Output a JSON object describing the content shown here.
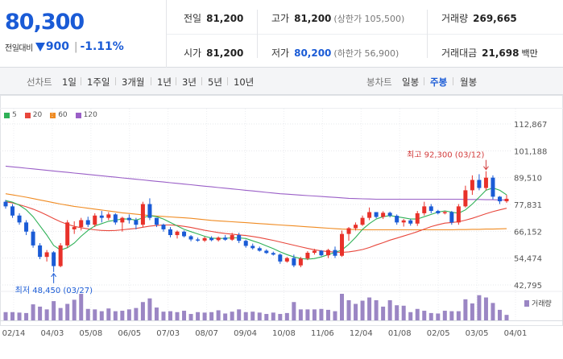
{
  "quote": {
    "price": "80,300",
    "change_label": "전일대비",
    "change_abs": "900",
    "change_pct": "-1.11%",
    "direction": "down",
    "prev_close_label": "전일",
    "prev_close": "81,200",
    "high_label": "고가",
    "high": "81,200",
    "upper_limit": "(상한가 105,500)",
    "volume_label": "거래량",
    "volume": "269,665",
    "open_label": "시가",
    "open": "81,200",
    "low_label": "저가",
    "low": "80,200",
    "lower_limit": "(하한가 56,900)",
    "amount_label": "거래대금",
    "amount": "21,698",
    "amount_unit": "백만"
  },
  "toolbar": {
    "line_chart_label": "선차트",
    "line_periods": [
      "1일",
      "1주일",
      "3개월",
      "1년",
      "3년",
      "5년",
      "10년"
    ],
    "candle_label": "봉차트",
    "candle_periods": [
      "일봉",
      "주봉",
      "월봉"
    ],
    "active_candle": "주봉"
  },
  "legend": [
    {
      "label": "5",
      "color": "#2fb157"
    },
    {
      "label": "20",
      "color": "#e8473c"
    },
    {
      "label": "60",
      "color": "#f08b22"
    },
    {
      "label": "120",
      "color": "#9a5fc7"
    }
  ],
  "volume_label": "거래량",
  "chart_data": {
    "type": "candlestick",
    "y_ticks": [
      "112,867",
      "101,188",
      "89,510",
      "77,831",
      "66,152",
      "54,474",
      "42,795"
    ],
    "ylim": [
      42795,
      112867
    ],
    "x_ticks": [
      "02/14",
      "04/03",
      "05/08",
      "06/05",
      "07/03",
      "08/07",
      "09/04",
      "10/08",
      "11/06",
      "12/04",
      "01/08",
      "02/05",
      "03/05",
      "04/01"
    ],
    "high_annotation": "최고 92,300 (03/12)",
    "low_annotation": "최저 48,450 (03/27)",
    "ohlc": [
      [
        79000,
        79800,
        76000,
        77000
      ],
      [
        77000,
        78000,
        72000,
        73000
      ],
      [
        73000,
        74000,
        69000,
        70000
      ],
      [
        70000,
        71000,
        64500,
        66000
      ],
      [
        66000,
        67000,
        59000,
        60000
      ],
      [
        60000,
        61000,
        54000,
        55000
      ],
      [
        55000,
        58000,
        53000,
        57000
      ],
      [
        57000,
        57500,
        48450,
        51000
      ],
      [
        51000,
        61000,
        50500,
        60000
      ],
      [
        60000,
        71000,
        59000,
        70000
      ],
      [
        67000,
        70500,
        65000,
        68000
      ],
      [
        68000,
        72000,
        66500,
        71000
      ],
      [
        71000,
        72500,
        68000,
        69000
      ],
      [
        69000,
        74000,
        68000,
        73000
      ],
      [
        73000,
        75000,
        70000,
        72000
      ],
      [
        72000,
        74500,
        71000,
        73500
      ],
      [
        73500,
        74000,
        69000,
        70000
      ],
      [
        70000,
        72500,
        66000,
        72000
      ],
      [
        72000,
        73500,
        69500,
        71000
      ],
      [
        71000,
        72000,
        67000,
        69000
      ],
      [
        69000,
        79000,
        68000,
        78000
      ],
      [
        78000,
        80500,
        71000,
        72000
      ],
      [
        72000,
        72000,
        68000,
        69000
      ],
      [
        69000,
        69500,
        66000,
        67000
      ],
      [
        67000,
        68000,
        63500,
        64500
      ],
      [
        64500,
        66500,
        63000,
        66000
      ],
      [
        66000,
        66500,
        63500,
        64000
      ],
      [
        64000,
        64500,
        61800,
        62600
      ],
      [
        62600,
        63400,
        61600,
        62100
      ],
      [
        62100,
        63800,
        61500,
        63200
      ],
      [
        63200,
        64000,
        61800,
        62300
      ],
      [
        62300,
        63900,
        61700,
        63400
      ],
      [
        63400,
        64500,
        62000,
        62500
      ],
      [
        62500,
        65500,
        62000,
        64500
      ],
      [
        64500,
        65500,
        61000,
        62000
      ],
      [
        62000,
        62500,
        59000,
        59800
      ],
      [
        59800,
        60800,
        58200,
        58800
      ],
      [
        58800,
        59500,
        57300,
        57700
      ],
      [
        57700,
        58300,
        56300,
        56700
      ],
      [
        56700,
        57300,
        55600,
        56000
      ],
      [
        56000,
        56500,
        52000,
        53000
      ],
      [
        53000,
        55000,
        52500,
        54500
      ],
      [
        54500,
        56000,
        50500,
        51300
      ],
      [
        51300,
        55000,
        50500,
        54300
      ],
      [
        54300,
        57500,
        53600,
        56800
      ],
      [
        56800,
        58500,
        56000,
        57700
      ],
      [
        57700,
        58000,
        55300,
        55700
      ],
      [
        55700,
        58500,
        54500,
        58000
      ],
      [
        58000,
        59500,
        54500,
        55500
      ],
      [
        55500,
        66500,
        55000,
        65000
      ],
      [
        65000,
        68000,
        62000,
        67500
      ],
      [
        67500,
        70000,
        66500,
        69000
      ],
      [
        69000,
        73000,
        68500,
        72000
      ],
      [
        72000,
        76500,
        71000,
        74500
      ],
      [
        74500,
        74500,
        71800,
        72400
      ],
      [
        72400,
        74900,
        71500,
        74200
      ],
      [
        74200,
        74700,
        72200,
        72900
      ],
      [
        72900,
        73500,
        69000,
        70000
      ],
      [
        70000,
        71500,
        68200,
        70900
      ],
      [
        70900,
        71500,
        68600,
        69500
      ],
      [
        69500,
        75000,
        68500,
        74000
      ],
      [
        74000,
        79000,
        73000,
        77000
      ],
      [
        77000,
        78000,
        74000,
        75000
      ],
      [
        75000,
        75500,
        73500,
        74000
      ],
      [
        74000,
        75000,
        73500,
        74500
      ],
      [
        74500,
        75000,
        69000,
        70000
      ],
      [
        70000,
        78000,
        69000,
        77000
      ],
      [
        77000,
        86000,
        76500,
        84000
      ],
      [
        84000,
        90500,
        82000,
        88500
      ],
      [
        88500,
        91000,
        84000,
        85000
      ],
      [
        85000,
        92300,
        84000,
        89500
      ],
      [
        89500,
        90500,
        80000,
        81200
      ],
      [
        81200,
        81500,
        78000,
        79200
      ],
      [
        79200,
        82000,
        78500,
        80300
      ]
    ],
    "volumes": [
      18,
      18,
      17,
      16,
      35,
      30,
      24,
      42,
      27,
      36,
      45,
      58,
      25,
      24,
      20,
      26,
      20,
      21,
      24,
      27,
      40,
      48,
      28,
      19,
      20,
      18,
      21,
      14,
      18,
      17,
      18,
      22,
      15,
      19,
      24,
      18,
      19,
      17,
      14,
      17,
      14,
      16,
      40,
      24,
      24,
      24,
      25,
      23,
      20,
      58,
      44,
      36,
      43,
      50,
      44,
      30,
      44,
      33,
      32,
      18,
      25,
      21,
      16,
      15,
      21,
      20,
      20,
      46,
      37,
      55,
      50,
      38,
      23,
      12
    ],
    "ma5": [
      79500,
      78800,
      77500,
      75500,
      72500,
      68500,
      64500,
      60000,
      58000,
      59000,
      61000,
      64000,
      66500,
      68500,
      69500,
      70500,
      71000,
      71500,
      71500,
      71000,
      72000,
      73000,
      72500,
      71500,
      70000,
      68500,
      67000,
      66000,
      65000,
      64000,
      63200,
      63000,
      63100,
      63300,
      63300,
      63000,
      62000,
      61000,
      59800,
      58600,
      57200,
      56000,
      55000,
      54300,
      54000,
      54300,
      55000,
      56000,
      57000,
      58000,
      60500,
      63500,
      67000,
      69500,
      71500,
      72500,
      73000,
      72500,
      72000,
      71500,
      71500,
      72500,
      73500,
      74500,
      75000,
      74500,
      74000,
      75500,
      78000,
      81000,
      84000,
      85000,
      84000,
      82000
    ],
    "ma20": [
      79000,
      78500,
      77700,
      76800,
      75800,
      74600,
      73200,
      71700,
      70300,
      69200,
      68300,
      67700,
      67200,
      66800,
      66500,
      66400,
      66500,
      66800,
      67100,
      67400,
      67900,
      68400,
      68700,
      68900,
      68900,
      68700,
      68300,
      67800,
      67200,
      66600,
      66100,
      65600,
      65200,
      64900,
      64600,
      64300,
      63900,
      63400,
      62800,
      62200,
      61500,
      60800,
      60100,
      59400,
      58700,
      58100,
      57600,
      57300,
      57100,
      57000,
      57200,
      57600,
      58200,
      59100,
      60200,
      61200,
      62300,
      63200,
      64100,
      65000,
      66000,
      67100,
      68200,
      69000,
      69700,
      70000,
      70300,
      71000,
      71800,
      72800,
      73800,
      74700,
      75500,
      76200
    ],
    "ma60": [
      82500,
      82000,
      81500,
      81000,
      80400,
      79800,
      79200,
      78600,
      78000,
      77500,
      77000,
      76600,
      76200,
      75800,
      75400,
      75000,
      74600,
      74200,
      73900,
      73600,
      73300,
      73000,
      72800,
      72600,
      72400,
      72200,
      72000,
      71800,
      71500,
      71200,
      70900,
      70700,
      70500,
      70300,
      70100,
      69900,
      69700,
      69500,
      69300,
      69100,
      68900,
      68700,
      68500,
      68300,
      68100,
      67900,
      67700,
      67500,
      67300,
      67100,
      67000,
      66900,
      66800,
      66800,
      66800,
      66800,
      66800,
      66800,
      66800,
      66800,
      66800,
      66800,
      66800,
      66800,
      66800,
      66800,
      66900,
      66900,
      67000,
      67000,
      67100,
      67100,
      67200,
      67300
    ],
    "ma120": [
      94500,
      94200,
      93900,
      93600,
      93300,
      93000,
      92700,
      92400,
      92100,
      91800,
      91500,
      91200,
      90900,
      90600,
      90300,
      90000,
      89700,
      89400,
      89100,
      88800,
      88500,
      88200,
      87900,
      87600,
      87300,
      87000,
      86700,
      86400,
      86100,
      85800,
      85500,
      85200,
      84900,
      84600,
      84300,
      84000,
      83700,
      83400,
      83100,
      82800,
      82500,
      82300,
      82100,
      81900,
      81700,
      81500,
      81300,
      81100,
      80900,
      80700,
      80500,
      80400,
      80300,
      80200,
      80100,
      80100,
      80100,
      80100,
      80100,
      80100,
      80100,
      80100,
      80100,
      80100,
      80100,
      80100,
      80100,
      80000,
      80000,
      80000,
      79900,
      79900,
      79800,
      79800
    ]
  }
}
